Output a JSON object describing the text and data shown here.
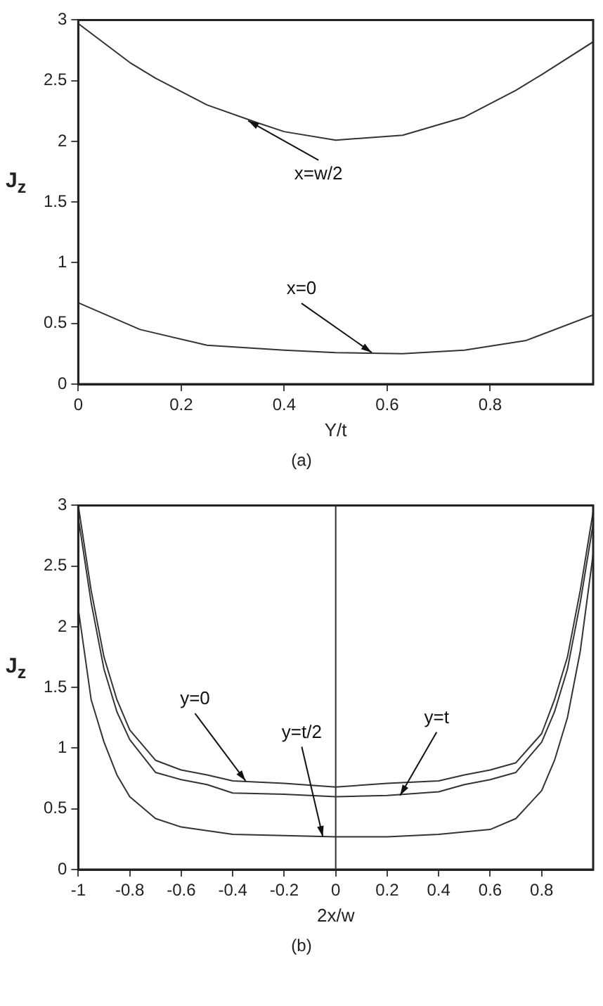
{
  "chart_data": [
    {
      "type": "line",
      "xlabel": "Y/t",
      "ylabel": "J$_{z}$",
      "xlim": [
        0,
        1
      ],
      "xticks": [
        0,
        0.2,
        0.4,
        0.6,
        0.8
      ],
      "ylim": [
        0,
        3
      ],
      "yticks": [
        0,
        0.5,
        1,
        1.5,
        2,
        2.5,
        3
      ],
      "grid": false,
      "legend": false,
      "series": [
        {
          "color": "#333333",
          "x": [
            0,
            0.1,
            0.15,
            0.25,
            0.35,
            0.4,
            0.5,
            0.63,
            0.75,
            0.85,
            0.9,
            1
          ],
          "values": [
            2.97,
            2.65,
            2.52,
            2.3,
            2.15,
            2.08,
            2.01,
            2.05,
            2.2,
            2.42,
            2.55,
            2.82
          ]
        },
        {
          "color": "#333333",
          "x": [
            0,
            0.12,
            0.25,
            0.4,
            0.5,
            0.63,
            0.75,
            0.87,
            1
          ],
          "values": [
            0.67,
            0.45,
            0.32,
            0.28,
            0.26,
            0.25,
            0.28,
            0.36,
            0.57
          ]
        }
      ],
      "annotations": [
        {
          "text": "x=w/2",
          "x": 0.33,
          "y": 2.17
        },
        {
          "text": "x=0",
          "x": 0.57,
          "y": 0.26
        },
        "(a)"
      ]
    },
    {
      "type": "line",
      "xlabel": "2x/w",
      "ylabel": "J$_{z}$",
      "xlim": [
        -1,
        1
      ],
      "xticks": [
        -1,
        -0.8,
        -0.6,
        -0.4,
        -0.2,
        0,
        0.2,
        0.4,
        0.6,
        0.8
      ],
      "ylim": [
        0,
        3
      ],
      "yticks": [
        0,
        0.5,
        1,
        1.5,
        2,
        2.5,
        3
      ],
      "grid": false,
      "legend": false,
      "ref_lines": [
        {
          "axis": "x",
          "value": 0,
          "color": "#333333"
        }
      ],
      "series": [
        {
          "color": "#333333",
          "x": [
            -1,
            -0.95,
            -0.9,
            -0.85,
            -0.8,
            -0.7,
            -0.6,
            -0.5,
            -0.4,
            -0.2,
            0,
            0.2,
            0.4,
            0.5,
            0.6,
            0.7,
            0.8,
            0.85,
            0.9,
            0.95,
            1
          ],
          "values": [
            3.0,
            2.3,
            1.75,
            1.4,
            1.15,
            0.9,
            0.82,
            0.78,
            0.73,
            0.71,
            0.68,
            0.71,
            0.73,
            0.78,
            0.82,
            0.88,
            1.12,
            1.4,
            1.75,
            2.3,
            2.95
          ]
        },
        {
          "color": "#333333",
          "x": [
            -1,
            -0.95,
            -0.9,
            -0.85,
            -0.8,
            -0.7,
            -0.6,
            -0.5,
            -0.4,
            -0.2,
            0,
            0.2,
            0.4,
            0.5,
            0.6,
            0.7,
            0.8,
            0.85,
            0.9,
            0.95,
            1
          ],
          "values": [
            2.9,
            2.2,
            1.65,
            1.3,
            1.07,
            0.8,
            0.74,
            0.7,
            0.63,
            0.62,
            0.6,
            0.61,
            0.64,
            0.7,
            0.74,
            0.8,
            1.05,
            1.3,
            1.65,
            2.2,
            2.85
          ]
        },
        {
          "color": "#333333",
          "x": [
            -1,
            -0.95,
            -0.9,
            -0.85,
            -0.8,
            -0.7,
            -0.6,
            -0.4,
            -0.2,
            0,
            0.2,
            0.4,
            0.6,
            0.7,
            0.8,
            0.85,
            0.9,
            0.95,
            1
          ],
          "values": [
            2.15,
            1.4,
            1.05,
            0.78,
            0.6,
            0.42,
            0.35,
            0.29,
            0.28,
            0.27,
            0.27,
            0.29,
            0.33,
            0.42,
            0.65,
            0.9,
            1.25,
            1.8,
            2.6
          ]
        }
      ],
      "annotations": [
        {
          "text": "y=0",
          "x": -0.35,
          "y": 0.73
        },
        {
          "text": "y=t/2",
          "x": -0.05,
          "y": 0.27
        },
        {
          "text": "y=t",
          "x": 0.25,
          "y": 0.61
        },
        "(b)"
      ]
    }
  ]
}
